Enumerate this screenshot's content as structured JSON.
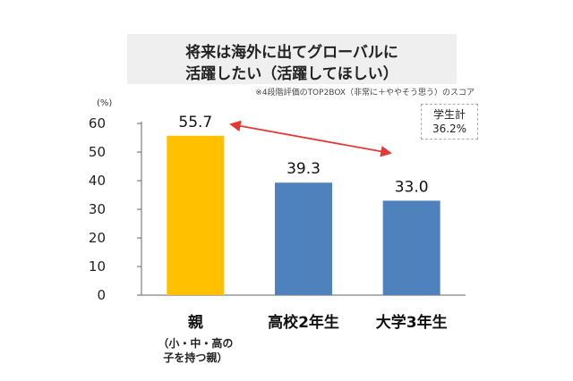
{
  "chart_data": {
    "type": "bar",
    "title": [
      "将来は海外に出てグローバルに",
      "活躍したい（活躍してほしい）"
    ],
    "note": "※4段階評価のTOP2BOX（非常に＋ややそう思う）のスコア",
    "unit": "(%)",
    "categories": [
      "親",
      "高校2年生",
      "大学3年生"
    ],
    "category_sublabels": [
      "（小・中・高の",
      "子を持つ親）"
    ],
    "values": [
      55.7,
      39.3,
      33.0
    ],
    "value_labels": [
      "55.7",
      "39.3",
      "33.0"
    ],
    "colors": [
      "#FFC000",
      "#4F81BD",
      "#4F81BD"
    ],
    "ylim": [
      0,
      60
    ],
    "yticks": [
      0,
      10,
      20,
      30,
      40,
      50,
      60
    ],
    "grid": false,
    "callout": {
      "label": "学生計",
      "value": "36.2%"
    },
    "comparison_arrow": {
      "from": "親",
      "to": "大学3年生",
      "color": "#E53935"
    }
  }
}
